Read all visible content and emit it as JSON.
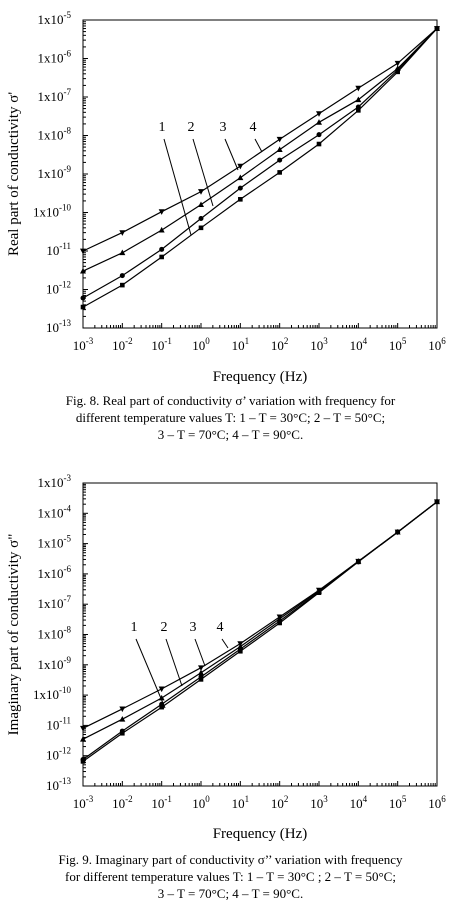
{
  "chart_data": [
    {
      "type": "line",
      "title": "",
      "xlabel": "Frequency (Hz)",
      "ylabel": "Real part of conductivity σ'",
      "x_scale": "log",
      "y_scale": "log",
      "xlim": [
        0.001,
        1000000
      ],
      "ylim": [
        1e-13,
        1e-05
      ],
      "x_tick_labels": [
        {
          "base": "10",
          "exp": "-3"
        },
        {
          "base": "10",
          "exp": "-2"
        },
        {
          "base": "10",
          "exp": "-1"
        },
        {
          "base": "10",
          "exp": "0"
        },
        {
          "base": "10",
          "exp": "1"
        },
        {
          "base": "10",
          "exp": "2"
        },
        {
          "base": "10",
          "exp": "3"
        },
        {
          "base": "10",
          "exp": "4"
        },
        {
          "base": "10",
          "exp": "5"
        },
        {
          "base": "10",
          "exp": "6"
        }
      ],
      "y_tick_labels": [
        {
          "base": "10",
          "exp": "-13"
        },
        {
          "base": "10",
          "exp": "-12"
        },
        {
          "base": "10",
          "exp": "-11"
        },
        {
          "base": "1x10",
          "exp": "-10"
        },
        {
          "base": "1x10",
          "exp": "-9"
        },
        {
          "base": "1x10",
          "exp": "-8"
        },
        {
          "base": "1x10",
          "exp": "-7"
        },
        {
          "base": "1x10",
          "exp": "-6"
        },
        {
          "base": "1x10",
          "exp": "-5"
        }
      ],
      "grid": false,
      "series": [
        {
          "label": "1",
          "marker": "square",
          "x": [
            0.001,
            0.01,
            0.1,
            1,
            10,
            100,
            1000,
            10000,
            100000,
            1000000
          ],
          "y": [
            3.5e-13,
            1.3e-12,
            7e-12,
            4e-11,
            2.2e-10,
            1.1e-09,
            6e-09,
            4.5e-08,
            4.5e-07,
            6e-06
          ]
        },
        {
          "label": "2",
          "marker": "circle",
          "x": [
            0.001,
            0.01,
            0.1,
            1,
            10,
            100,
            1000,
            10000,
            100000,
            1000000
          ],
          "y": [
            6e-13,
            2.3e-12,
            1.1e-11,
            7e-11,
            4.3e-10,
            2.3e-09,
            1.05e-08,
            5.5e-08,
            5e-07,
            6e-06
          ]
        },
        {
          "label": "3",
          "marker": "triangle-up",
          "x": [
            0.001,
            0.01,
            0.1,
            1,
            10,
            100,
            1000,
            10000,
            100000,
            1000000
          ],
          "y": [
            3e-12,
            9e-12,
            3.5e-11,
            1.6e-10,
            8e-10,
            4.3e-09,
            2.2e-08,
            8.5e-08,
            5.5e-07,
            6e-06
          ]
        },
        {
          "label": "4",
          "marker": "triangle-down",
          "x": [
            0.001,
            0.01,
            0.1,
            1,
            10,
            100,
            1000,
            10000,
            100000,
            1000000
          ],
          "y": [
            1e-11,
            3e-11,
            1.05e-10,
            3.5e-10,
            1.6e-09,
            8e-09,
            3.7e-08,
            1.7e-07,
            7.5e-07,
            6e-06
          ]
        }
      ],
      "curve_labels": [
        "1",
        "2",
        "3",
        "4"
      ],
      "caption_lines": [
        "Fig. 8.  Real part of conductivity σ’ variation with frequency for",
        "different temperature values T: 1 – T = 30°C; 2 – T = 50°C;",
        "3 – T = 70°C; 4 – T = 90°C."
      ]
    },
    {
      "type": "line",
      "title": "",
      "xlabel": "Frequency (Hz)",
      "ylabel": "Imaginary part of conductivity σ\"",
      "x_scale": "log",
      "y_scale": "log",
      "xlim": [
        0.001,
        1000000
      ],
      "ylim": [
        1e-13,
        0.001
      ],
      "x_tick_labels": [
        {
          "base": "10",
          "exp": "-3"
        },
        {
          "base": "10",
          "exp": "-2"
        },
        {
          "base": "10",
          "exp": "-1"
        },
        {
          "base": "10",
          "exp": "0"
        },
        {
          "base": "10",
          "exp": "1"
        },
        {
          "base": "10",
          "exp": "2"
        },
        {
          "base": "10",
          "exp": "3"
        },
        {
          "base": "10",
          "exp": "4"
        },
        {
          "base": "10",
          "exp": "5"
        },
        {
          "base": "10",
          "exp": "6"
        }
      ],
      "y_tick_labels": [
        {
          "base": "10",
          "exp": "-13"
        },
        {
          "base": "10",
          "exp": "-12"
        },
        {
          "base": "10",
          "exp": "-11"
        },
        {
          "base": "1x10",
          "exp": "-10"
        },
        {
          "base": "1x10",
          "exp": "-9"
        },
        {
          "base": "1x10",
          "exp": "-8"
        },
        {
          "base": "1x10",
          "exp": "-7"
        },
        {
          "base": "1x10",
          "exp": "-6"
        },
        {
          "base": "1x10",
          "exp": "-5"
        },
        {
          "base": "1x10",
          "exp": "-4"
        },
        {
          "base": "1x10",
          "exp": "-3"
        }
      ],
      "grid": false,
      "series": [
        {
          "label": "1",
          "marker": "square",
          "x": [
            0.001,
            0.01,
            0.1,
            1,
            10,
            100,
            1000,
            10000,
            100000,
            1000000
          ],
          "y": [
            6.5e-13,
            5.5e-12,
            4e-11,
            3.3e-10,
            2.8e-09,
            2.4e-08,
            2.4e-07,
            2.5e-06,
            2.4e-05,
            0.00024
          ]
        },
        {
          "label": "2",
          "marker": "circle",
          "x": [
            0.001,
            0.01,
            0.1,
            1,
            10,
            100,
            1000,
            10000,
            100000,
            1000000
          ],
          "y": [
            7.5e-13,
            6.5e-12,
            5e-11,
            4e-10,
            3.3e-09,
            2.8e-08,
            2.5e-07,
            2.5e-06,
            2.4e-05,
            0.00024
          ]
        },
        {
          "label": "3",
          "marker": "triangle-up",
          "x": [
            0.001,
            0.01,
            0.1,
            1,
            10,
            100,
            1000,
            10000,
            100000,
            1000000
          ],
          "y": [
            3.5e-12,
            1.6e-11,
            8e-11,
            5.5e-10,
            4e-09,
            3.3e-08,
            2.7e-07,
            2.6e-06,
            2.4e-05,
            0.00024
          ]
        },
        {
          "label": "4",
          "marker": "triangle-down",
          "x": [
            0.001,
            0.01,
            0.1,
            1,
            10,
            100,
            1000,
            10000,
            100000,
            1000000
          ],
          "y": [
            8e-12,
            3.5e-11,
            1.6e-10,
            8e-10,
            5e-09,
            3.8e-08,
            2.9e-07,
            2.6e-06,
            2.4e-05,
            0.00024
          ]
        }
      ],
      "curve_labels": [
        "1",
        "2",
        "3",
        "4"
      ],
      "caption_lines": [
        "Fig. 9.  Imaginary part of conductivity σ’’ variation with frequency",
        "for different temperature values T: 1 – T = 30°C ; 2 – T = 50°C;",
        "3 – T = 70°C; 4 – T = 90°C."
      ]
    }
  ]
}
